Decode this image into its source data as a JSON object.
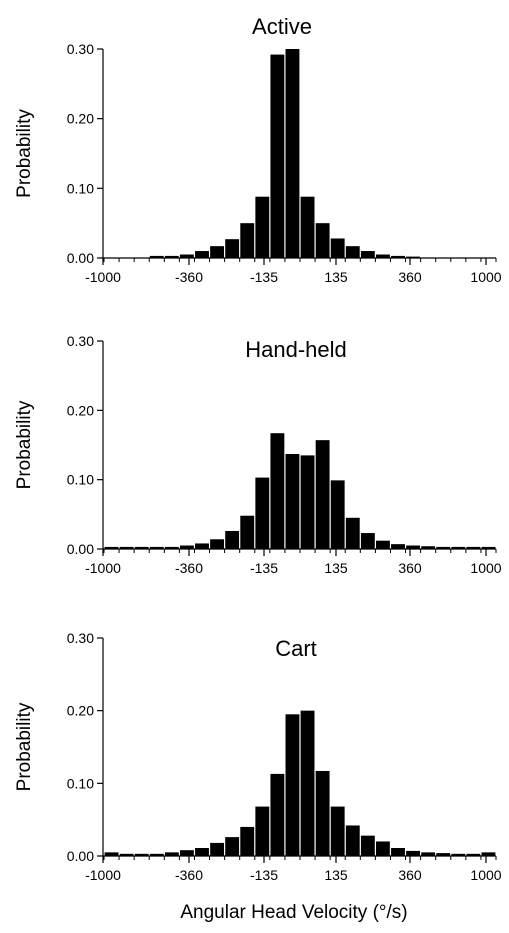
{
  "chart_data": [
    {
      "type": "bar",
      "title": "Active",
      "ylabel": "Probability",
      "xlabel": "",
      "ylim": [
        0,
        0.3
      ],
      "yticks": [
        "0.00",
        "0.10",
        "0.20",
        "0.30"
      ],
      "xticks": [
        "-1000",
        "-360",
        "-135",
        "135",
        "360",
        "1000"
      ],
      "values": [
        0,
        0,
        0,
        0.003,
        0.003,
        0.005,
        0.01,
        0.017,
        0.027,
        0.05,
        0.088,
        0.292,
        0.3,
        0.088,
        0.05,
        0.028,
        0.017,
        0.01,
        0.005,
        0.003,
        0.002,
        0,
        0,
        0,
        0,
        0
      ]
    },
    {
      "type": "bar",
      "title": "Hand-held",
      "ylabel": "Probability",
      "xlabel": "",
      "ylim": [
        0,
        0.3
      ],
      "yticks": [
        "0.00",
        "0.10",
        "0.20",
        "0.30"
      ],
      "xticks": [
        "-1000",
        "-360",
        "-135",
        "135",
        "360",
        "1000"
      ],
      "values": [
        0.003,
        0.003,
        0.003,
        0.003,
        0.003,
        0.005,
        0.008,
        0.014,
        0.026,
        0.048,
        0.103,
        0.167,
        0.137,
        0.135,
        0.157,
        0.099,
        0.045,
        0.023,
        0.012,
        0.007,
        0.005,
        0.004,
        0.003,
        0.003,
        0.003,
        0.003
      ]
    },
    {
      "type": "bar",
      "title": "Cart",
      "ylabel": "Probability",
      "xlabel": "Angular Head Velocity (°/s)",
      "ylim": [
        0,
        0.3
      ],
      "yticks": [
        "0.00",
        "0.10",
        "0.20",
        "0.30"
      ],
      "xticks": [
        "-1000",
        "-360",
        "-135",
        "135",
        "360",
        "1000"
      ],
      "values": [
        0.005,
        0.003,
        0.003,
        0.003,
        0.005,
        0.008,
        0.011,
        0.018,
        0.026,
        0.04,
        0.068,
        0.113,
        0.195,
        0.2,
        0.117,
        0.068,
        0.042,
        0.028,
        0.02,
        0.011,
        0.007,
        0.005,
        0.004,
        0.003,
        0.003,
        0.005
      ]
    }
  ]
}
